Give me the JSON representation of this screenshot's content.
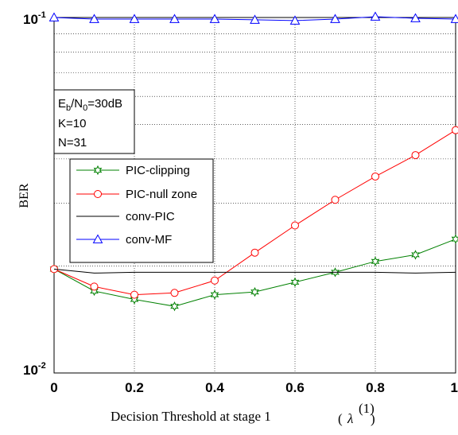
{
  "chart_data": {
    "type": "line",
    "title": "",
    "xlabel": "Decision Threshold at stage 1",
    "xlabel_symbol": "λ",
    "xlabel_superscript": "(1)",
    "ylabel": "BER",
    "y_scale": "log",
    "xlim": [
      0,
      1
    ],
    "ylim": [
      0.01,
      0.1
    ],
    "x_ticks": [
      "0",
      "0.2",
      "0.4",
      "0.6",
      "0.8",
      "1"
    ],
    "y_ticks": [
      {
        "base": "10",
        "exp": "-1"
      },
      {
        "base": "10",
        "exp": "-2"
      }
    ],
    "grid": true,
    "legend_position": "middle-left",
    "annotation": {
      "ebno_prefix_main": "E",
      "ebno_prefix_sub": "b",
      "ebno_mid_main": "/N",
      "ebno_mid_sub": "0",
      "ebno_value": "=30dB",
      "k_line": "K=10",
      "n_line": "N=31"
    },
    "x": [
      0,
      0.1,
      0.2,
      0.3,
      0.4,
      0.5,
      0.6,
      0.7,
      0.8,
      0.9,
      1.0
    ],
    "series": [
      {
        "name": "PIC-clipping",
        "color": "#008000",
        "marker": "star",
        "values": [
          0.0196,
          0.017,
          0.0161,
          0.0154,
          0.0166,
          0.0169,
          0.018,
          0.0192,
          0.0206,
          0.0215,
          0.0238
        ]
      },
      {
        "name": "PIC-null zone",
        "color": "#ff0000",
        "marker": "circle",
        "values": [
          0.0196,
          0.0175,
          0.0166,
          0.0168,
          0.0182,
          0.0218,
          0.026,
          0.0307,
          0.0357,
          0.041,
          0.0482
        ]
      },
      {
        "name": "conv-PIC",
        "color": "#000000",
        "marker": "none",
        "values": [
          0.0196,
          0.0191,
          0.0192,
          0.0192,
          0.0192,
          0.0192,
          0.0192,
          0.0192,
          0.0192,
          0.0191,
          0.0192
        ]
      },
      {
        "name": "conv-MF",
        "color": "#0000ff",
        "marker": "triangle",
        "values": [
          0.1,
          0.099,
          0.099,
          0.099,
          0.099,
          0.0985,
          0.098,
          0.099,
          0.1005,
          0.0995,
          0.099
        ]
      }
    ]
  }
}
